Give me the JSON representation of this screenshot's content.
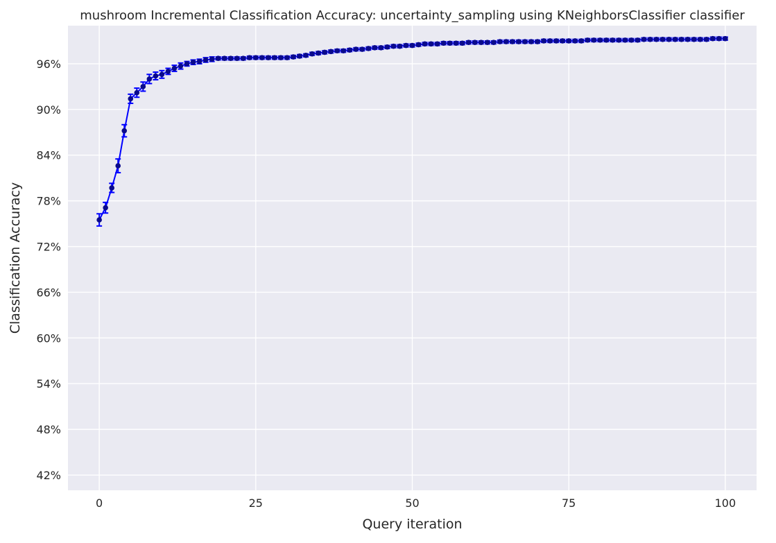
{
  "chart_data": {
    "type": "scatter",
    "title": "mushroom Incremental Classification Accuracy: uncertainty_sampling using KNeighborsClassifier classifier",
    "xlabel": "Query iteration",
    "ylabel": "Classification Accuracy",
    "xlim": [
      -5,
      105
    ],
    "ylim": [
      0.4,
      1.01
    ],
    "xticks": [
      0,
      25,
      50,
      75,
      100
    ],
    "yticks": [
      0.42,
      0.48,
      0.54,
      0.6,
      0.66,
      0.72,
      0.78,
      0.84,
      0.9,
      0.96
    ],
    "ytick_format": "percent",
    "grid": true,
    "background": "#EAEAF2",
    "grid_color": "#FFFFFF",
    "marker_color": "#0A0A8C",
    "errorbar_color": "#0000FF",
    "series": [
      {
        "x": [
          0,
          1,
          2,
          3,
          4,
          5,
          6,
          7,
          8,
          9,
          10,
          11,
          12,
          13,
          14,
          15,
          16,
          17,
          18,
          19,
          20,
          21,
          22,
          23,
          24,
          25,
          26,
          27,
          28,
          29,
          30,
          31,
          32,
          33,
          34,
          35,
          36,
          37,
          38,
          39,
          40,
          41,
          42,
          43,
          44,
          45,
          46,
          47,
          48,
          49,
          50,
          51,
          52,
          53,
          54,
          55,
          56,
          57,
          58,
          59,
          60,
          61,
          62,
          63,
          64,
          65,
          66,
          67,
          68,
          69,
          70,
          71,
          72,
          73,
          74,
          75,
          76,
          77,
          78,
          79,
          80,
          81,
          82,
          83,
          84,
          85,
          86,
          87,
          88,
          89,
          90,
          91,
          92,
          93,
          94,
          95,
          96,
          97,
          98,
          99,
          100
        ],
        "y": [
          0.755,
          0.771,
          0.797,
          0.826,
          0.872,
          0.914,
          0.922,
          0.93,
          0.94,
          0.944,
          0.946,
          0.95,
          0.954,
          0.957,
          0.96,
          0.962,
          0.963,
          0.965,
          0.966,
          0.967,
          0.967,
          0.967,
          0.967,
          0.967,
          0.968,
          0.968,
          0.968,
          0.968,
          0.968,
          0.968,
          0.968,
          0.969,
          0.97,
          0.971,
          0.973,
          0.974,
          0.975,
          0.976,
          0.977,
          0.977,
          0.978,
          0.979,
          0.979,
          0.98,
          0.981,
          0.981,
          0.982,
          0.983,
          0.983,
          0.984,
          0.984,
          0.985,
          0.986,
          0.986,
          0.986,
          0.987,
          0.987,
          0.987,
          0.987,
          0.988,
          0.988,
          0.988,
          0.988,
          0.988,
          0.989,
          0.989,
          0.989,
          0.989,
          0.989,
          0.989,
          0.989,
          0.99,
          0.99,
          0.99,
          0.99,
          0.99,
          0.99,
          0.99,
          0.991,
          0.991,
          0.991,
          0.991,
          0.991,
          0.991,
          0.991,
          0.991,
          0.991,
          0.992,
          0.992,
          0.992,
          0.992,
          0.992,
          0.992,
          0.992,
          0.992,
          0.992,
          0.992,
          0.992,
          0.993,
          0.993,
          0.993
        ],
        "err": [
          0.008,
          0.007,
          0.006,
          0.009,
          0.008,
          0.006,
          0.006,
          0.006,
          0.006,
          0.005,
          0.005,
          0.004,
          0.004,
          0.004,
          0.003,
          0.003,
          0.003,
          0.003,
          0.003,
          0.002,
          0.002,
          0.002,
          0.002,
          0.002,
          0.002,
          0.002,
          0.002,
          0.002,
          0.002,
          0.002,
          0.002,
          0.002,
          0.002,
          0.002,
          0.002,
          0.002,
          0.002,
          0.002,
          0.002,
          0.002,
          0.002,
          0.002,
          0.002,
          0.002,
          0.002,
          0.002,
          0.002,
          0.002,
          0.002,
          0.002,
          0.002,
          0.002,
          0.002,
          0.002,
          0.002,
          0.002,
          0.002,
          0.002,
          0.002,
          0.002,
          0.002,
          0.002,
          0.002,
          0.002,
          0.002,
          0.002,
          0.002,
          0.002,
          0.002,
          0.002,
          0.002,
          0.002,
          0.002,
          0.002,
          0.002,
          0.002,
          0.002,
          0.002,
          0.002,
          0.002,
          0.002,
          0.002,
          0.002,
          0.002,
          0.002,
          0.002,
          0.002,
          0.002,
          0.002,
          0.002,
          0.002,
          0.002,
          0.002,
          0.002,
          0.002,
          0.002,
          0.002,
          0.002,
          0.002,
          0.002,
          0.002
        ]
      }
    ]
  }
}
